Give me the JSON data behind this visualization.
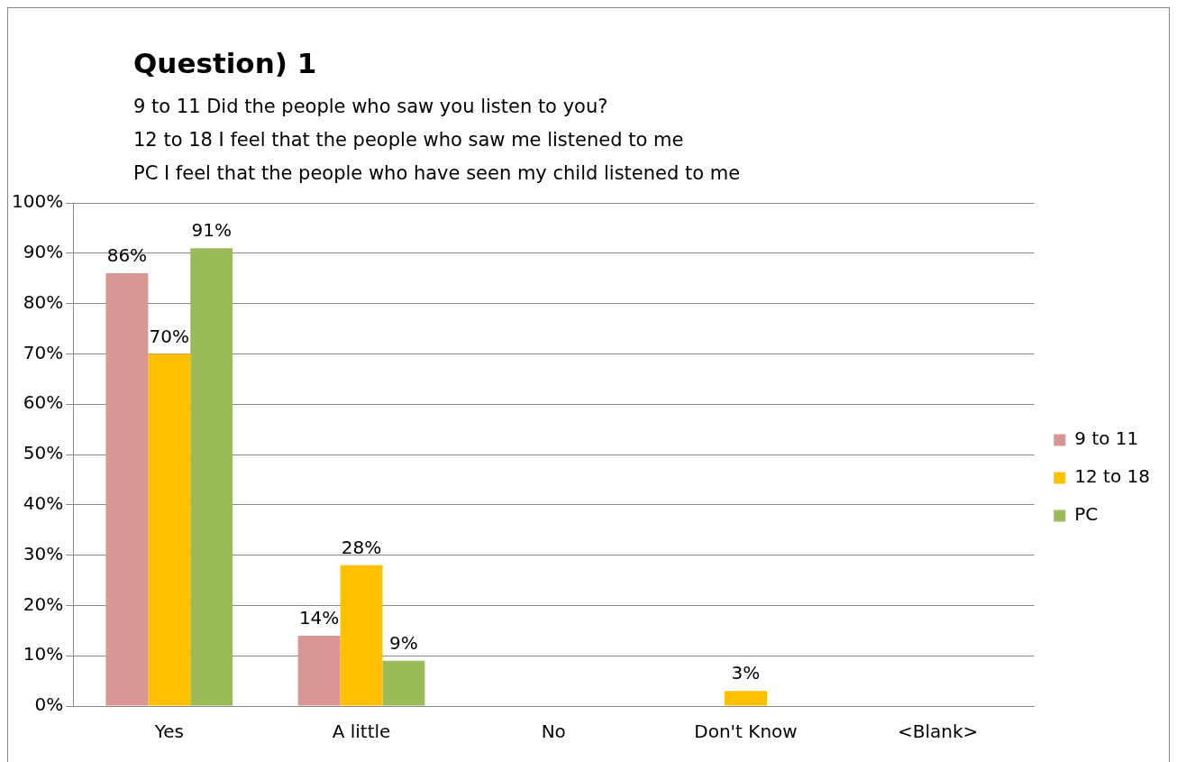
{
  "chart_data": {
    "type": "bar",
    "title": "Question) 1",
    "subtitle": "9 to 11 Did the people who saw you listen to you?\n12 to 18 I feel that the people who saw me listened to me\nPC I feel that the people who have seen my child listened to me",
    "categories": [
      "Yes",
      "A little",
      "No",
      "Don't Know",
      "<Blank>"
    ],
    "series": [
      {
        "name": "9 to 11",
        "color": "#d99694",
        "values": [
          86,
          14,
          null,
          null,
          null
        ],
        "value_labels": [
          "86%",
          "14%",
          null,
          null,
          null
        ]
      },
      {
        "name": "12 to 18",
        "color": "#ffc000",
        "values": [
          70,
          28,
          null,
          3,
          null
        ],
        "value_labels": [
          "70%",
          "28%",
          null,
          "3%",
          null
        ]
      },
      {
        "name": "PC",
        "color": "#9bbb59",
        "values": [
          91,
          9,
          null,
          null,
          null
        ],
        "value_labels": [
          "91%",
          "9%",
          null,
          null,
          null
        ]
      }
    ],
    "ylim": [
      0,
      100
    ],
    "yticks": [
      {
        "value": 0,
        "label": "0%"
      },
      {
        "value": 10,
        "label": "10%"
      },
      {
        "value": 20,
        "label": "20%"
      },
      {
        "value": 30,
        "label": "30%"
      },
      {
        "value": 40,
        "label": "40%"
      },
      {
        "value": 50,
        "label": "50%"
      },
      {
        "value": 60,
        "label": "60%"
      },
      {
        "value": 70,
        "label": "70%"
      },
      {
        "value": 80,
        "label": "80%"
      },
      {
        "value": 90,
        "label": "90%"
      },
      {
        "value": 100,
        "label": "100%"
      }
    ],
    "grid": "y",
    "legend": "right"
  }
}
